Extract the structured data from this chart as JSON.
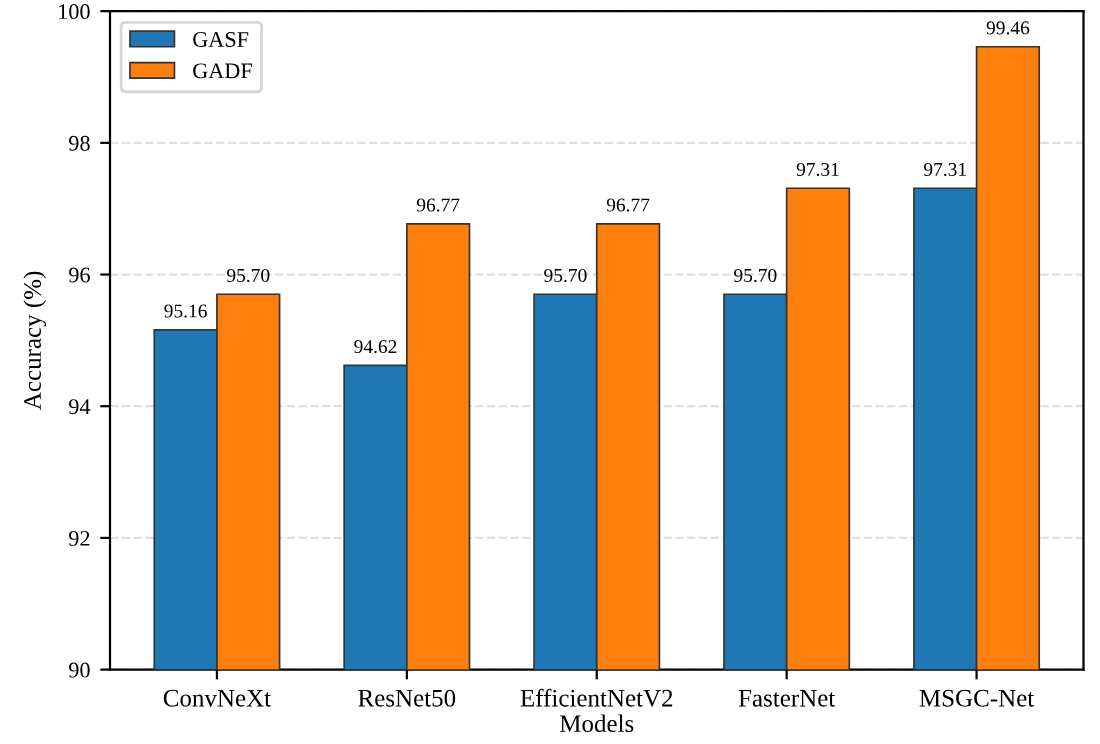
{
  "chart_data": {
    "type": "bar",
    "xlabel": "Models",
    "ylabel": "Accuracy (%)",
    "categories": [
      "ConvNeXt",
      "ResNet50",
      "EfficientNetV2",
      "FasterNet",
      "MSGC-Net"
    ],
    "series": [
      {
        "name": "GASF",
        "color": "#1f77b4",
        "values": [
          95.16,
          94.62,
          95.7,
          95.7,
          97.31
        ],
        "value_labels": [
          "95.16",
          "94.62",
          "95.70",
          "95.70",
          "97.31"
        ]
      },
      {
        "name": "GADF",
        "color": "#ff7f0e",
        "values": [
          95.7,
          96.77,
          96.77,
          97.31,
          99.46
        ],
        "value_labels": [
          "95.70",
          "96.77",
          "96.77",
          "97.31",
          "99.46"
        ]
      }
    ],
    "ylim": [
      90,
      100
    ],
    "yticks": [
      90,
      92,
      94,
      96,
      98,
      100
    ],
    "grid": "y",
    "legend": "top left"
  }
}
